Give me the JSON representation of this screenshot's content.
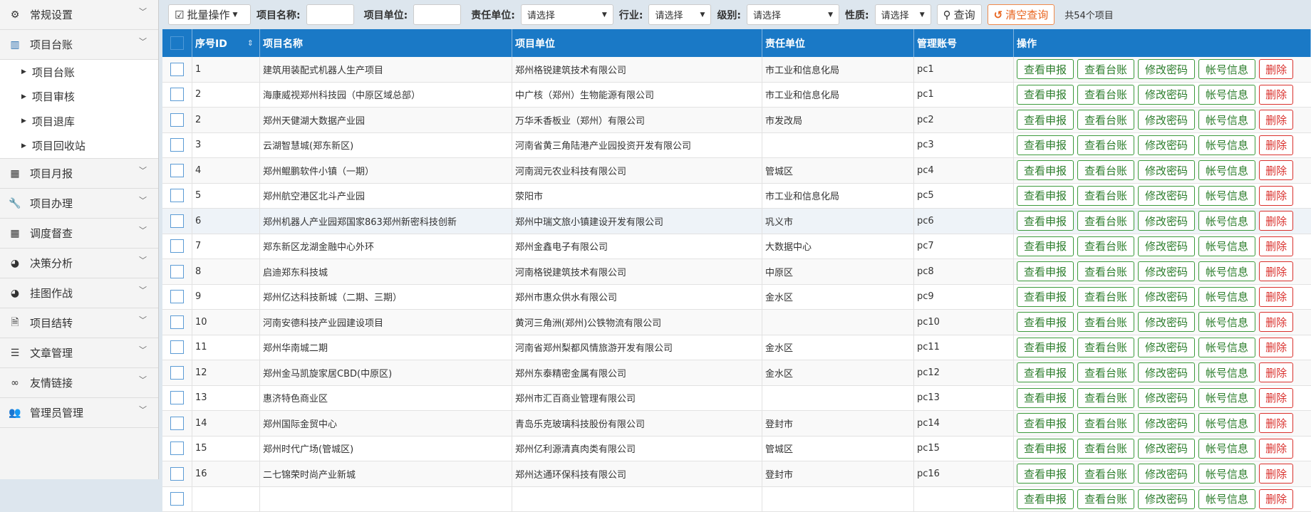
{
  "sidebar": {
    "items": [
      {
        "label": "常规设置",
        "icon": "gear-icon",
        "glyph": "⚙"
      },
      {
        "label": "项目台账",
        "icon": "building-icon",
        "glyph": "▥",
        "active": true,
        "children": [
          {
            "label": "项目台账"
          },
          {
            "label": "项目审核"
          },
          {
            "label": "项目退库"
          },
          {
            "label": "项目回收站"
          }
        ]
      },
      {
        "label": "项目月报",
        "icon": "calendar-icon",
        "glyph": "▦"
      },
      {
        "label": "项目办理",
        "icon": "wrench-icon",
        "glyph": "🔧"
      },
      {
        "label": "调度督查",
        "icon": "calendar-icon",
        "glyph": "▦"
      },
      {
        "label": "决策分析",
        "icon": "pie-chart-icon",
        "glyph": "◕"
      },
      {
        "label": "挂图作战",
        "icon": "pie-chart-icon",
        "glyph": "◕"
      },
      {
        "label": "项目结转",
        "icon": "excel-file-icon",
        "glyph": "🗎"
      },
      {
        "label": "文章管理",
        "icon": "indent-list-icon",
        "glyph": "☰"
      },
      {
        "label": "友情链接",
        "icon": "link-icon",
        "glyph": "∞"
      },
      {
        "label": "管理员管理",
        "icon": "users-icon",
        "glyph": "👥"
      }
    ]
  },
  "toolbar": {
    "batch_label": "批量操作",
    "name_label": "项目名称:",
    "name_value": "",
    "unit_label": "项目单位:",
    "unit_value": "",
    "resp_label": "责任单位:",
    "resp_value": "请选择",
    "industry_label": "行业:",
    "industry_value": "请选择",
    "level_label": "级别:",
    "level_value": "请选择",
    "nature_label": "性质:",
    "nature_value": "请选择",
    "search_label": "查询",
    "clear_label": "清空查询",
    "count_text": "共54个项目"
  },
  "table": {
    "headers": [
      "序号ID",
      "项目名称",
      "项目单位",
      "责任单位",
      "管理账号",
      "操作"
    ],
    "actions": [
      "查看申报",
      "查看台账",
      "修改密码",
      "帐号信息",
      "删除"
    ],
    "rows": [
      [
        "1",
        "建筑用装配式机器人生产项目",
        "郑州格锐建筑技术有限公司",
        "市工业和信息化局",
        "pc1"
      ],
      [
        "2",
        "海康威视郑州科技园（中原区域总部）",
        "中广核（郑州）生物能源有限公司",
        "市工业和信息化局",
        "pc1"
      ],
      [
        "2",
        "郑州天健湖大数据产业园",
        "万华禾香板业（郑州）有限公司",
        "市发改局",
        "pc2"
      ],
      [
        "3",
        "云湖智慧城(郑东新区)",
        "河南省黄三角陆港产业园投资开发有限公司",
        "",
        "pc3"
      ],
      [
        "4",
        "郑州鲲鹏软件小镇（一期）",
        "河南润元农业科技有限公司",
        "管城区",
        "pc4"
      ],
      [
        "5",
        "郑州航空港区北斗产业园",
        "荥阳市",
        "市工业和信息化局",
        "pc5"
      ],
      [
        "6",
        "郑州机器人产业园郑国家863郑州新密科技创新",
        "郑州中瑞文旅小镇建设开发有限公司",
        "巩义市",
        "pc6"
      ],
      [
        "7",
        "郑东新区龙湖金融中心外环",
        "郑州金鑫电子有限公司",
        "大数据中心",
        "pc7"
      ],
      [
        "8",
        "启迪郑东科技城",
        "河南格锐建筑技术有限公司",
        "中原区",
        "pc8"
      ],
      [
        "9",
        "郑州亿达科技新城（二期、三期）",
        "郑州市惠众供水有限公司",
        "金水区",
        "pc9"
      ],
      [
        "10",
        "河南安德科技产业园建设项目",
        "黄河三角洲(郑州)公铁物流有限公司",
        "",
        "pc10"
      ],
      [
        "11",
        "郑州华南城二期",
        "河南省郑州梨都风情旅游开发有限公司",
        "金水区",
        "pc11"
      ],
      [
        "12",
        "郑州金马凯旋家居CBD(中原区)",
        "郑州东泰精密金属有限公司",
        "金水区",
        "pc12"
      ],
      [
        "13",
        "惠济特色商业区",
        "郑州市汇百商业管理有限公司",
        "",
        "pc13"
      ],
      [
        "14",
        "郑州国际金贸中心",
        "青岛乐克玻璃科技股份有限公司",
        "登封市",
        "pc14"
      ],
      [
        "15",
        "郑州时代广场(管城区)",
        "郑州亿利源清真肉类有限公司",
        "管城区",
        "pc15"
      ],
      [
        "16",
        "二七锦荣时尚产业新城",
        "郑州达通环保科技有限公司",
        "登封市",
        "pc16"
      ],
      [
        "",
        "",
        "",
        "",
        ""
      ]
    ]
  }
}
